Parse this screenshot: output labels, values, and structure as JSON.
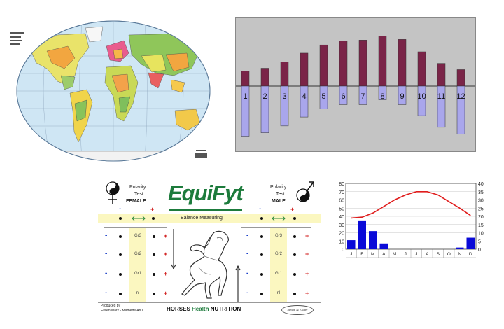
{
  "bar_chart": {
    "type": "bar",
    "labels": [
      "1",
      "2",
      "3",
      "4",
      "5",
      "6",
      "7",
      "8",
      "9",
      "10",
      "11",
      "12"
    ],
    "up_values": [
      22,
      26,
      35,
      48,
      60,
      66,
      67,
      73,
      68,
      50,
      33,
      24
    ],
    "down_values": [
      73,
      68,
      58,
      45,
      33,
      27,
      27,
      20,
      27,
      43,
      60,
      70
    ],
    "colors": {
      "up": "#7a2448",
      "down": "#a9a6ec"
    }
  },
  "chart_data": {
    "type": "bar",
    "categories": [
      "J",
      "F",
      "M",
      "A",
      "M",
      "J",
      "J",
      "A",
      "S",
      "O",
      "N",
      "D"
    ],
    "series": [
      {
        "values": [
          11,
          35,
          22,
          7,
          0,
          0,
          0,
          0,
          0,
          0,
          2,
          14
        ],
        "color": "#0a0ad8"
      },
      {
        "values": [
          19,
          19.5,
          22,
          26,
          30,
          33,
          35,
          35,
          33,
          29,
          25,
          20.5
        ],
        "color": "#e01c1c"
      }
    ],
    "left_ticks": [
      "80",
      "70",
      "60",
      "50",
      "40",
      "30",
      "20",
      "10",
      "0"
    ],
    "right_ticks": [
      "40",
      "35",
      "30",
      "25",
      "20",
      "15",
      "10",
      "5",
      "0"
    ],
    "ylim_left": [
      0,
      80
    ],
    "ylim_right": [
      0,
      40
    ]
  },
  "equifyt": {
    "logo_left": "Equi",
    "logo_right": "Fyt",
    "female_polarity": "Polarity",
    "female_test": "Test",
    "female_label": "FEMALE",
    "male_polarity": "Polarity",
    "male_test": "Test",
    "male_label": "MALE",
    "balance_label": "Balance Measuring",
    "grades": [
      "Gr3",
      "Gr2",
      "Gr1",
      "nl"
    ],
    "produced_line1": "Produced by",
    "produced_line2": "Elisen Mark - Mamette Ariu",
    "footer_1": "HORSES ",
    "footer_2": "Health",
    "footer_3": " NUTRITION",
    "badge": "Simon & Esther"
  },
  "colors": {
    "logo_green": "#1d7b3c",
    "balance_band": "#fbf7c0",
    "minus": "#1a3fc9",
    "plus": "#d01818"
  }
}
